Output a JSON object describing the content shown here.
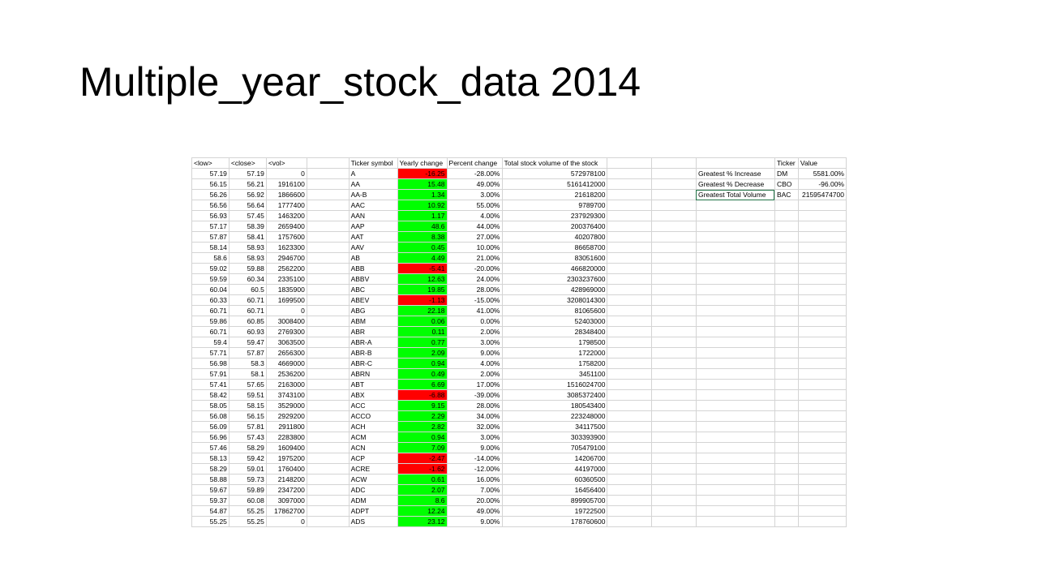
{
  "title": "Multiple_year_stock_data 2014",
  "headers": {
    "low": "<low>",
    "close": "<close>",
    "vol": "<vol>",
    "ticker": "Ticker symbol",
    "yearly": "Yearly change",
    "percent": "Percent change",
    "total": "Total stock volume of the stock",
    "summary_ticker": "Ticker",
    "summary_value": "Value"
  },
  "summary": [
    {
      "label": "Greatest % Increase",
      "ticker": "DM",
      "value": "5581.00%"
    },
    {
      "label": "Greatest % Decrease",
      "ticker": "CBO",
      "value": "-96.00%"
    },
    {
      "label": "Greatest Total Volume",
      "ticker": "BAC",
      "value": "21595474700"
    }
  ],
  "colors": {
    "positive": "#00ff00",
    "negative": "#ff0000"
  },
  "rows": [
    {
      "low": "57.19",
      "close": "57.19",
      "vol": "0",
      "ticker": "A",
      "yearly": "-16.25",
      "percent": "-28.00%",
      "total": "572978100"
    },
    {
      "low": "56.15",
      "close": "56.21",
      "vol": "1916100",
      "ticker": "AA",
      "yearly": "15.48",
      "percent": "49.00%",
      "total": "5161412000"
    },
    {
      "low": "56.26",
      "close": "56.92",
      "vol": "1866600",
      "ticker": "AA-B",
      "yearly": "1.34",
      "percent": "3.00%",
      "total": "21618200"
    },
    {
      "low": "56.56",
      "close": "56.64",
      "vol": "1777400",
      "ticker": "AAC",
      "yearly": "10.92",
      "percent": "55.00%",
      "total": "9789700"
    },
    {
      "low": "56.93",
      "close": "57.45",
      "vol": "1463200",
      "ticker": "AAN",
      "yearly": "1.17",
      "percent": "4.00%",
      "total": "237929300"
    },
    {
      "low": "57.17",
      "close": "58.39",
      "vol": "2659400",
      "ticker": "AAP",
      "yearly": "48.6",
      "percent": "44.00%",
      "total": "200376400"
    },
    {
      "low": "57.87",
      "close": "58.41",
      "vol": "1757600",
      "ticker": "AAT",
      "yearly": "8.38",
      "percent": "27.00%",
      "total": "40207800"
    },
    {
      "low": "58.14",
      "close": "58.93",
      "vol": "1623300",
      "ticker": "AAV",
      "yearly": "0.45",
      "percent": "10.00%",
      "total": "86658700"
    },
    {
      "low": "58.6",
      "close": "58.93",
      "vol": "2946700",
      "ticker": "AB",
      "yearly": "4.49",
      "percent": "21.00%",
      "total": "83051600"
    },
    {
      "low": "59.02",
      "close": "59.88",
      "vol": "2562200",
      "ticker": "ABB",
      "yearly": "-5.41",
      "percent": "-20.00%",
      "total": "466820000"
    },
    {
      "low": "59.59",
      "close": "60.34",
      "vol": "2335100",
      "ticker": "ABBV",
      "yearly": "12.63",
      "percent": "24.00%",
      "total": "2303237600"
    },
    {
      "low": "60.04",
      "close": "60.5",
      "vol": "1835900",
      "ticker": "ABC",
      "yearly": "19.85",
      "percent": "28.00%",
      "total": "428969000"
    },
    {
      "low": "60.33",
      "close": "60.71",
      "vol": "1699500",
      "ticker": "ABEV",
      "yearly": "-1.13",
      "percent": "-15.00%",
      "total": "3208014300"
    },
    {
      "low": "60.71",
      "close": "60.71",
      "vol": "0",
      "ticker": "ABG",
      "yearly": "22.18",
      "percent": "41.00%",
      "total": "81065600"
    },
    {
      "low": "59.86",
      "close": "60.85",
      "vol": "3008400",
      "ticker": "ABM",
      "yearly": "0.06",
      "percent": "0.00%",
      "total": "52403000"
    },
    {
      "low": "60.71",
      "close": "60.93",
      "vol": "2769300",
      "ticker": "ABR",
      "yearly": "0.11",
      "percent": "2.00%",
      "total": "28348400"
    },
    {
      "low": "59.4",
      "close": "59.47",
      "vol": "3063500",
      "ticker": "ABR-A",
      "yearly": "0.77",
      "percent": "3.00%",
      "total": "1798500"
    },
    {
      "low": "57.71",
      "close": "57.87",
      "vol": "2656300",
      "ticker": "ABR-B",
      "yearly": "2.09",
      "percent": "9.00%",
      "total": "1722000"
    },
    {
      "low": "56.98",
      "close": "58.3",
      "vol": "4669000",
      "ticker": "ABR-C",
      "yearly": "0.94",
      "percent": "4.00%",
      "total": "1758200"
    },
    {
      "low": "57.91",
      "close": "58.1",
      "vol": "2536200",
      "ticker": "ABRN",
      "yearly": "0.49",
      "percent": "2.00%",
      "total": "3451100"
    },
    {
      "low": "57.41",
      "close": "57.65",
      "vol": "2163000",
      "ticker": "ABT",
      "yearly": "6.69",
      "percent": "17.00%",
      "total": "1516024700"
    },
    {
      "low": "58.42",
      "close": "59.51",
      "vol": "3743100",
      "ticker": "ABX",
      "yearly": "-6.88",
      "percent": "-39.00%",
      "total": "3085372400"
    },
    {
      "low": "58.05",
      "close": "58.15",
      "vol": "3529000",
      "ticker": "ACC",
      "yearly": "9.15",
      "percent": "28.00%",
      "total": "180543400"
    },
    {
      "low": "56.08",
      "close": "56.15",
      "vol": "2929200",
      "ticker": "ACCO",
      "yearly": "2.29",
      "percent": "34.00%",
      "total": "223248000"
    },
    {
      "low": "56.09",
      "close": "57.81",
      "vol": "2911800",
      "ticker": "ACH",
      "yearly": "2.82",
      "percent": "32.00%",
      "total": "34117500"
    },
    {
      "low": "56.96",
      "close": "57.43",
      "vol": "2283800",
      "ticker": "ACM",
      "yearly": "0.94",
      "percent": "3.00%",
      "total": "303393900"
    },
    {
      "low": "57.46",
      "close": "58.29",
      "vol": "1609400",
      "ticker": "ACN",
      "yearly": "7.09",
      "percent": "9.00%",
      "total": "705479100"
    },
    {
      "low": "58.13",
      "close": "59.42",
      "vol": "1975200",
      "ticker": "ACP",
      "yearly": "-2.47",
      "percent": "-14.00%",
      "total": "14206700"
    },
    {
      "low": "58.29",
      "close": "59.01",
      "vol": "1760400",
      "ticker": "ACRE",
      "yearly": "-1.62",
      "percent": "-12.00%",
      "total": "44197000"
    },
    {
      "low": "58.88",
      "close": "59.73",
      "vol": "2148200",
      "ticker": "ACW",
      "yearly": "0.61",
      "percent": "16.00%",
      "total": "60360500"
    },
    {
      "low": "59.67",
      "close": "59.89",
      "vol": "2347200",
      "ticker": "ADC",
      "yearly": "2.07",
      "percent": "7.00%",
      "total": "16456400"
    },
    {
      "low": "59.37",
      "close": "60.08",
      "vol": "3097000",
      "ticker": "ADM",
      "yearly": "8.6",
      "percent": "20.00%",
      "total": "899905700"
    },
    {
      "low": "54.87",
      "close": "55.25",
      "vol": "17862700",
      "ticker": "ADPT",
      "yearly": "12.24",
      "percent": "49.00%",
      "total": "19722500"
    },
    {
      "low": "55.25",
      "close": "55.25",
      "vol": "0",
      "ticker": "ADS",
      "yearly": "23.12",
      "percent": "9.00%",
      "total": "178760600"
    }
  ]
}
